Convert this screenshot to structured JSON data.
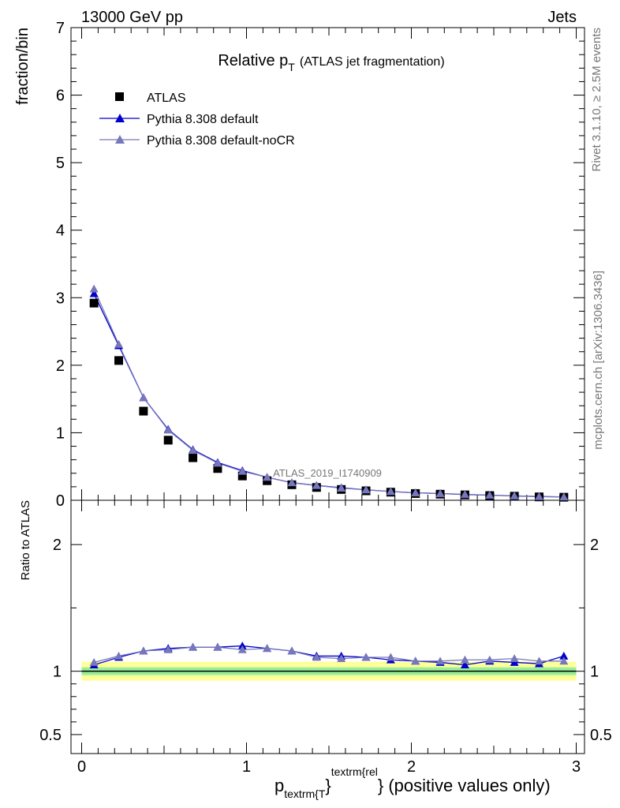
{
  "header": {
    "energy": "13000 GeV pp",
    "process": "Jets"
  },
  "side": {
    "rivet": "Rivet 3.1.10, ≥ 2.5M events",
    "mcplots": "mcplots.cern.ch [arXiv:1306.3436]"
  },
  "chart_data": {
    "type": "scatter",
    "title": {
      "main": "Relative p",
      "main_sub": "T",
      "extra": "(ATLAS jet fragmentation)"
    },
    "analysis_label": "ATLAS_2019_I1740909",
    "top_panel": {
      "ylabel": "fraction/bin",
      "xlim": [
        0,
        3
      ],
      "ylim": [
        0,
        7
      ],
      "yticks": [
        "0",
        "1",
        "2",
        "3",
        "4",
        "5",
        "6",
        "7"
      ],
      "legend": {
        "placement": "top-left",
        "entries": [
          "ATLAS",
          "Pythia 8.308 default",
          "Pythia 8.308 default-noCR"
        ]
      },
      "x": [
        0.075,
        0.225,
        0.375,
        0.525,
        0.675,
        0.825,
        0.975,
        1.125,
        1.275,
        1.425,
        1.575,
        1.725,
        1.875,
        2.025,
        2.175,
        2.325,
        2.475,
        2.625,
        2.775,
        2.925
      ],
      "series": [
        {
          "name": "ATLAS",
          "color": "#000000",
          "marker": "square",
          "values": [
            2.92,
            2.07,
            1.32,
            0.89,
            0.63,
            0.47,
            0.36,
            0.29,
            0.23,
            0.19,
            0.16,
            0.14,
            0.12,
            0.1,
            0.09,
            0.08,
            0.07,
            0.06,
            0.05,
            0.045
          ]
        },
        {
          "name": "Pythia 8.308 default",
          "color": "#0000cc",
          "marker": "triangle",
          "values": [
            3.06,
            2.29,
            1.52,
            1.05,
            0.75,
            0.56,
            0.44,
            0.34,
            0.26,
            0.22,
            0.185,
            0.155,
            0.13,
            0.11,
            0.1,
            0.085,
            0.075,
            0.065,
            0.055,
            0.05
          ]
        },
        {
          "name": "Pythia 8.308 default-noCR",
          "color": "#7777bb",
          "marker": "triangle",
          "values": [
            3.13,
            2.31,
            1.52,
            1.04,
            0.74,
            0.55,
            0.43,
            0.34,
            0.26,
            0.22,
            0.18,
            0.155,
            0.13,
            0.11,
            0.1,
            0.088,
            0.076,
            0.066,
            0.056,
            0.05
          ]
        }
      ]
    },
    "ratio_panel": {
      "ylabel": "Ratio to ATLAS",
      "ylim": [
        0.35,
        2.35
      ],
      "yticks": [
        "0.5",
        "1",
        "2"
      ],
      "reference": 1,
      "band_color": "#ffff99",
      "inner_band_color": "#99ee99",
      "series": [
        {
          "name": "Pythia 8.308 default",
          "color": "#0000cc",
          "values": [
            1.05,
            1.11,
            1.16,
            1.18,
            1.19,
            1.19,
            1.2,
            1.18,
            1.16,
            1.12,
            1.12,
            1.11,
            1.09,
            1.08,
            1.07,
            1.05,
            1.08,
            1.07,
            1.06,
            1.12
          ]
        },
        {
          "name": "Pythia 8.308 default-noCR",
          "color": "#7777bb",
          "values": [
            1.07,
            1.12,
            1.16,
            1.17,
            1.19,
            1.19,
            1.17,
            1.18,
            1.16,
            1.11,
            1.1,
            1.11,
            1.11,
            1.08,
            1.08,
            1.09,
            1.09,
            1.1,
            1.08,
            1.08
          ]
        }
      ]
    },
    "xaxis": {
      "ticks": [
        "0",
        "1",
        "2",
        "3"
      ],
      "label_main": "p",
      "label_sub": "textrm{T",
      "label_sup": "textrm{rel",
      "label_tail": "} (positive values only)",
      "label_brace": "}"
    }
  }
}
